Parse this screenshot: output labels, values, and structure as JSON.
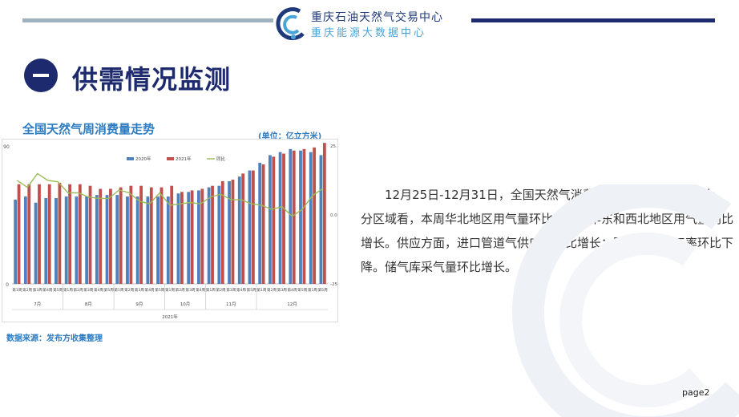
{
  "header": {
    "org_name_1": "重庆石油天然气交易中心",
    "org_name_2": "重庆能源大数据中心"
  },
  "section": {
    "title": "供需情况监测"
  },
  "chart_title": "全国天然气周消费量走势",
  "chart_unit": "(单位：亿立方米)",
  "source": "数据来源：发布方收集整理",
  "body_text": "12月25日-12月31日，全国天然气消费总量同比增幅大幅扩大。分区域看，本周华北地区用气量环比增长；华东和西北地区用气量同比增长。供应方面，进口管道气供应量环比增长；国内液厂开工率环比下降。储气库采气量环比增长。",
  "page_label": "page2",
  "chart_data": {
    "type": "bar",
    "series": [
      {
        "name": "2020年",
        "color": "#4f81bd",
        "values": [
          55,
          57,
          53,
          56,
          56,
          57,
          57,
          57,
          58,
          58,
          58,
          57,
          57,
          57,
          57,
          57,
          59,
          60,
          61,
          63,
          64,
          67,
          70,
          74,
          79,
          84,
          86,
          88,
          87,
          86,
          84
        ]
      },
      {
        "name": "2021年",
        "color": "#c0504d",
        "values": [
          65,
          65,
          65,
          65,
          66,
          65,
          65,
          64,
          62,
          62,
          63,
          64,
          64,
          63,
          63,
          64,
          60,
          61,
          62,
          64,
          67,
          68,
          72,
          74,
          78,
          83,
          85,
          87,
          88,
          89,
          92
        ]
      },
      {
        "name": "同比",
        "color": "#9bbb59",
        "axis": "right",
        "values": [
          12.5,
          10.0,
          15.0,
          12.5,
          12.0,
          8.0,
          8.0,
          6.5,
          6.0,
          6.0,
          9.0,
          8.0,
          5.0,
          4.0,
          8.0,
          3.5,
          4.0,
          4.5,
          4.0,
          6.5,
          7.5,
          5.5,
          5.5,
          4.0,
          3.5,
          2.0,
          3.0,
          -0.5,
          2.0,
          7.0,
          9.5
        ]
      }
    ],
    "categories": [
      "第1周",
      "第2周",
      "第3周",
      "第4周",
      "第5周",
      "第1周",
      "第2周",
      "第3周",
      "第4周",
      "第5周",
      "第1周",
      "第2周",
      "第3周",
      "第4周",
      "第5周",
      "第1周",
      "第2周",
      "第3周",
      "第4周",
      "第1周",
      "第2周",
      "第3周",
      "第4周",
      "第5周",
      "第1周",
      "第2周",
      "第3周",
      "第4周",
      "第5周",
      "第1周",
      "第5周"
    ],
    "month_groups": [
      {
        "label": "7月",
        "count": 5
      },
      {
        "label": "8月",
        "count": 5
      },
      {
        "label": "9月",
        "count": 5
      },
      {
        "label": "10月",
        "count": 4
      },
      {
        "label": "11月",
        "count": 5
      },
      {
        "label": "12月",
        "count": 7
      }
    ],
    "year_label": "2021年",
    "y_ticks": [
      "0",
      "90"
    ],
    "ylim": [
      0,
      90
    ],
    "y2_ticks": [
      "-25.0%",
      "0.0%",
      "25.0%"
    ],
    "y2lim": [
      -25,
      25
    ],
    "legend_position": "top"
  }
}
